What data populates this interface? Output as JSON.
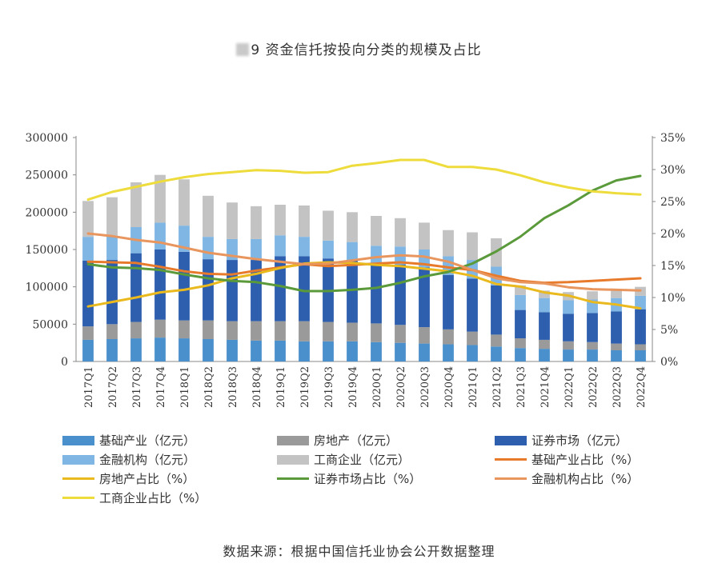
{
  "chart_data": {
    "type": "bar",
    "title": "9 资金信托按投向分类的规模及占比",
    "categories": [
      "2017Q1",
      "2017Q2",
      "2017Q3",
      "2017Q4",
      "2018Q1",
      "2018Q2",
      "2018Q3",
      "2018Q4",
      "2019Q1",
      "2019Q2",
      "2019Q3",
      "2019Q4",
      "2020Q1",
      "2020Q2",
      "2020Q3",
      "2020Q4",
      "2021Q1",
      "2021Q2",
      "2021Q3",
      "2021Q4",
      "2022Q1",
      "2022Q2",
      "2022Q3",
      "2022Q4"
    ],
    "y_left": {
      "min": 0,
      "max": 300000,
      "ticks": [
        "300000",
        "250000",
        "200000",
        "150000",
        "100000",
        "50000",
        "0"
      ]
    },
    "y_right": {
      "min": 0,
      "max": 35,
      "ticks": [
        "35%",
        "30%",
        "25%",
        "20%",
        "15%",
        "10%",
        "5%",
        "0%"
      ]
    },
    "stacked_series": [
      {
        "name": "基础产业（亿元）",
        "color": "#4a90cc",
        "values": [
          29000,
          30000,
          31000,
          32000,
          31000,
          30000,
          29000,
          28000,
          28000,
          27000,
          27000,
          27000,
          26000,
          25000,
          24000,
          23000,
          22000,
          20000,
          18000,
          17000,
          16000,
          16000,
          15000,
          15000
        ]
      },
      {
        "name": "房地产（亿元）",
        "color": "#9a9a9a",
        "values": [
          18000,
          20000,
          22000,
          24000,
          24000,
          25000,
          25000,
          26000,
          26000,
          27000,
          26000,
          25000,
          25000,
          24000,
          22000,
          20000,
          18000,
          16000,
          13000,
          12000,
          11000,
          10000,
          9000,
          8000
        ]
      },
      {
        "name": "证券市场（亿元）",
        "color": "#2d5fae",
        "values": [
          88000,
          86000,
          92000,
          94000,
          92000,
          82000,
          82000,
          82000,
          87000,
          87000,
          85000,
          84000,
          80000,
          81000,
          80000,
          73000,
          71000,
          66000,
          38000,
          37000,
          37000,
          39000,
          43000,
          47000
        ]
      },
      {
        "name": "金融机构（亿元）",
        "color": "#7fb6e4",
        "values": [
          32000,
          33000,
          35000,
          36000,
          35000,
          30000,
          28000,
          28000,
          28000,
          26000,
          24000,
          24000,
          24000,
          24000,
          24000,
          25000,
          25000,
          25000,
          20000,
          19000,
          18000,
          18000,
          18000,
          18000
        ]
      },
      {
        "name": "工商企业（亿元）",
        "color": "#c3c3c3",
        "values": [
          48000,
          51000,
          60000,
          64000,
          62000,
          55000,
          49000,
          44000,
          41000,
          42000,
          40000,
          40000,
          40000,
          38000,
          36000,
          35000,
          37000,
          38000,
          13000,
          10000,
          11000,
          11000,
          12000,
          12000
        ]
      }
    ],
    "line_series": [
      {
        "name": "基础产业占比（%）",
        "color": "#e87a2c",
        "values": [
          15.6,
          15.5,
          15.4,
          14.8,
          14.1,
          13.7,
          13.6,
          14.2,
          14.7,
          15.2,
          14.9,
          15.1,
          15.3,
          15.5,
          15.2,
          14.7,
          14.3,
          13.4,
          12.6,
          12.3,
          12.4,
          12.6,
          12.8,
          13.0
        ]
      },
      {
        "name": "房地产占比（%）",
        "color": "#e9b91e",
        "values": [
          8.6,
          9.3,
          10.0,
          10.8,
          11.2,
          11.9,
          13.0,
          13.7,
          14.6,
          15.3,
          15.5,
          15.4,
          15.1,
          14.9,
          14.5,
          14.1,
          13.4,
          12.1,
          11.7,
          10.8,
          10.3,
          9.3,
          8.9,
          8.3
        ]
      },
      {
        "name": "证券市场占比（%）",
        "color": "#5a9a3a",
        "values": [
          15.2,
          14.7,
          14.6,
          14.3,
          13.6,
          13.0,
          12.6,
          12.4,
          11.8,
          11.0,
          11.0,
          11.2,
          11.5,
          12.3,
          13.3,
          14.0,
          15.3,
          17.2,
          19.5,
          22.4,
          24.4,
          26.7,
          28.3,
          29.0
        ]
      },
      {
        "name": "金融机构占比（%）",
        "color": "#e8955e",
        "values": [
          20.0,
          19.6,
          19.0,
          18.6,
          17.8,
          17.0,
          16.5,
          16.0,
          15.6,
          15.2,
          15.3,
          15.8,
          16.3,
          16.6,
          16.4,
          15.6,
          14.3,
          13.0,
          12.4,
          12.2,
          11.6,
          11.3,
          11.2,
          11.1
        ]
      },
      {
        "name": "工商企业占比（%）",
        "color": "#eddc3c",
        "values": [
          25.3,
          26.5,
          27.3,
          28.1,
          28.8,
          29.3,
          29.6,
          29.9,
          29.8,
          29.5,
          29.6,
          30.6,
          31.0,
          31.5,
          31.5,
          30.4,
          30.4,
          30.0,
          29.1,
          28.0,
          27.2,
          26.6,
          26.3,
          26.1
        ]
      }
    ],
    "legend_position": "bottom"
  },
  "source": "数据来源：根据中国信托业协会公开数据整理"
}
